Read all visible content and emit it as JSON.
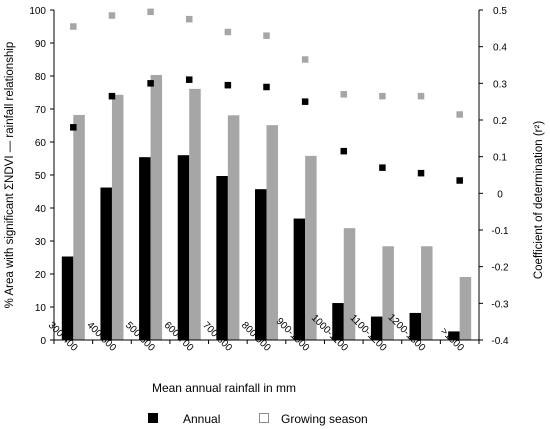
{
  "chart_data": {
    "type": "bar",
    "xlabel": "Mean annual rainfall in mm",
    "ylabel": "% Area with significant ΣNDVI — rainfall relationship",
    "y2label": "Coefficient of determination (r²)",
    "categories": [
      "300-400",
      "400-500",
      "500-600",
      "600-700",
      "700-800",
      "800-900",
      "900-1000",
      "1000-1100",
      "1100-1200",
      "1200-1300",
      ">1300"
    ],
    "ylim": [
      0,
      100
    ],
    "y2lim": [
      -0.4,
      0.5
    ],
    "yticks": [
      "0",
      "10",
      "20",
      "30",
      "40",
      "50",
      "60",
      "70",
      "80",
      "90",
      "100"
    ],
    "y2ticks": [
      "-0.4",
      "-0.3",
      "-0.2",
      "-0.1",
      "0",
      "0.1",
      "0.2",
      "0.3",
      "0.4",
      "0.5"
    ],
    "grid": false,
    "legend_position": "bottom",
    "series": [
      {
        "name": "Annual",
        "kind": "bar",
        "axis": "left",
        "color": "#000000",
        "values": [
          25.3,
          46.2,
          55.4,
          56.0,
          49.7,
          45.7,
          36.8,
          11.2,
          7.1,
          8.2,
          2.6
        ]
      },
      {
        "name": "Growing season",
        "kind": "bar",
        "axis": "left",
        "color": "#a6a6a6",
        "values": [
          68.2,
          74.3,
          80.3,
          76.1,
          68.1,
          65.1,
          55.8,
          33.9,
          28.4,
          28.4,
          19.1
        ]
      },
      {
        "name": "Annual",
        "kind": "scatter",
        "axis": "right",
        "color": "#000000",
        "values": [
          0.18,
          0.265,
          0.3,
          0.31,
          0.295,
          0.29,
          0.25,
          0.115,
          0.07,
          0.055,
          0.035
        ]
      },
      {
        "name": "Growing season",
        "kind": "scatter",
        "axis": "right",
        "color": "#a6a6a6",
        "values": [
          0.455,
          0.485,
          0.495,
          0.475,
          0.44,
          0.43,
          0.365,
          0.27,
          0.265,
          0.265,
          0.215
        ]
      }
    ],
    "legend": [
      {
        "label": "Annual",
        "color": "#000000",
        "fill": true
      },
      {
        "label": "Growing season",
        "color": "#8c8c8c",
        "fill": false
      }
    ]
  }
}
